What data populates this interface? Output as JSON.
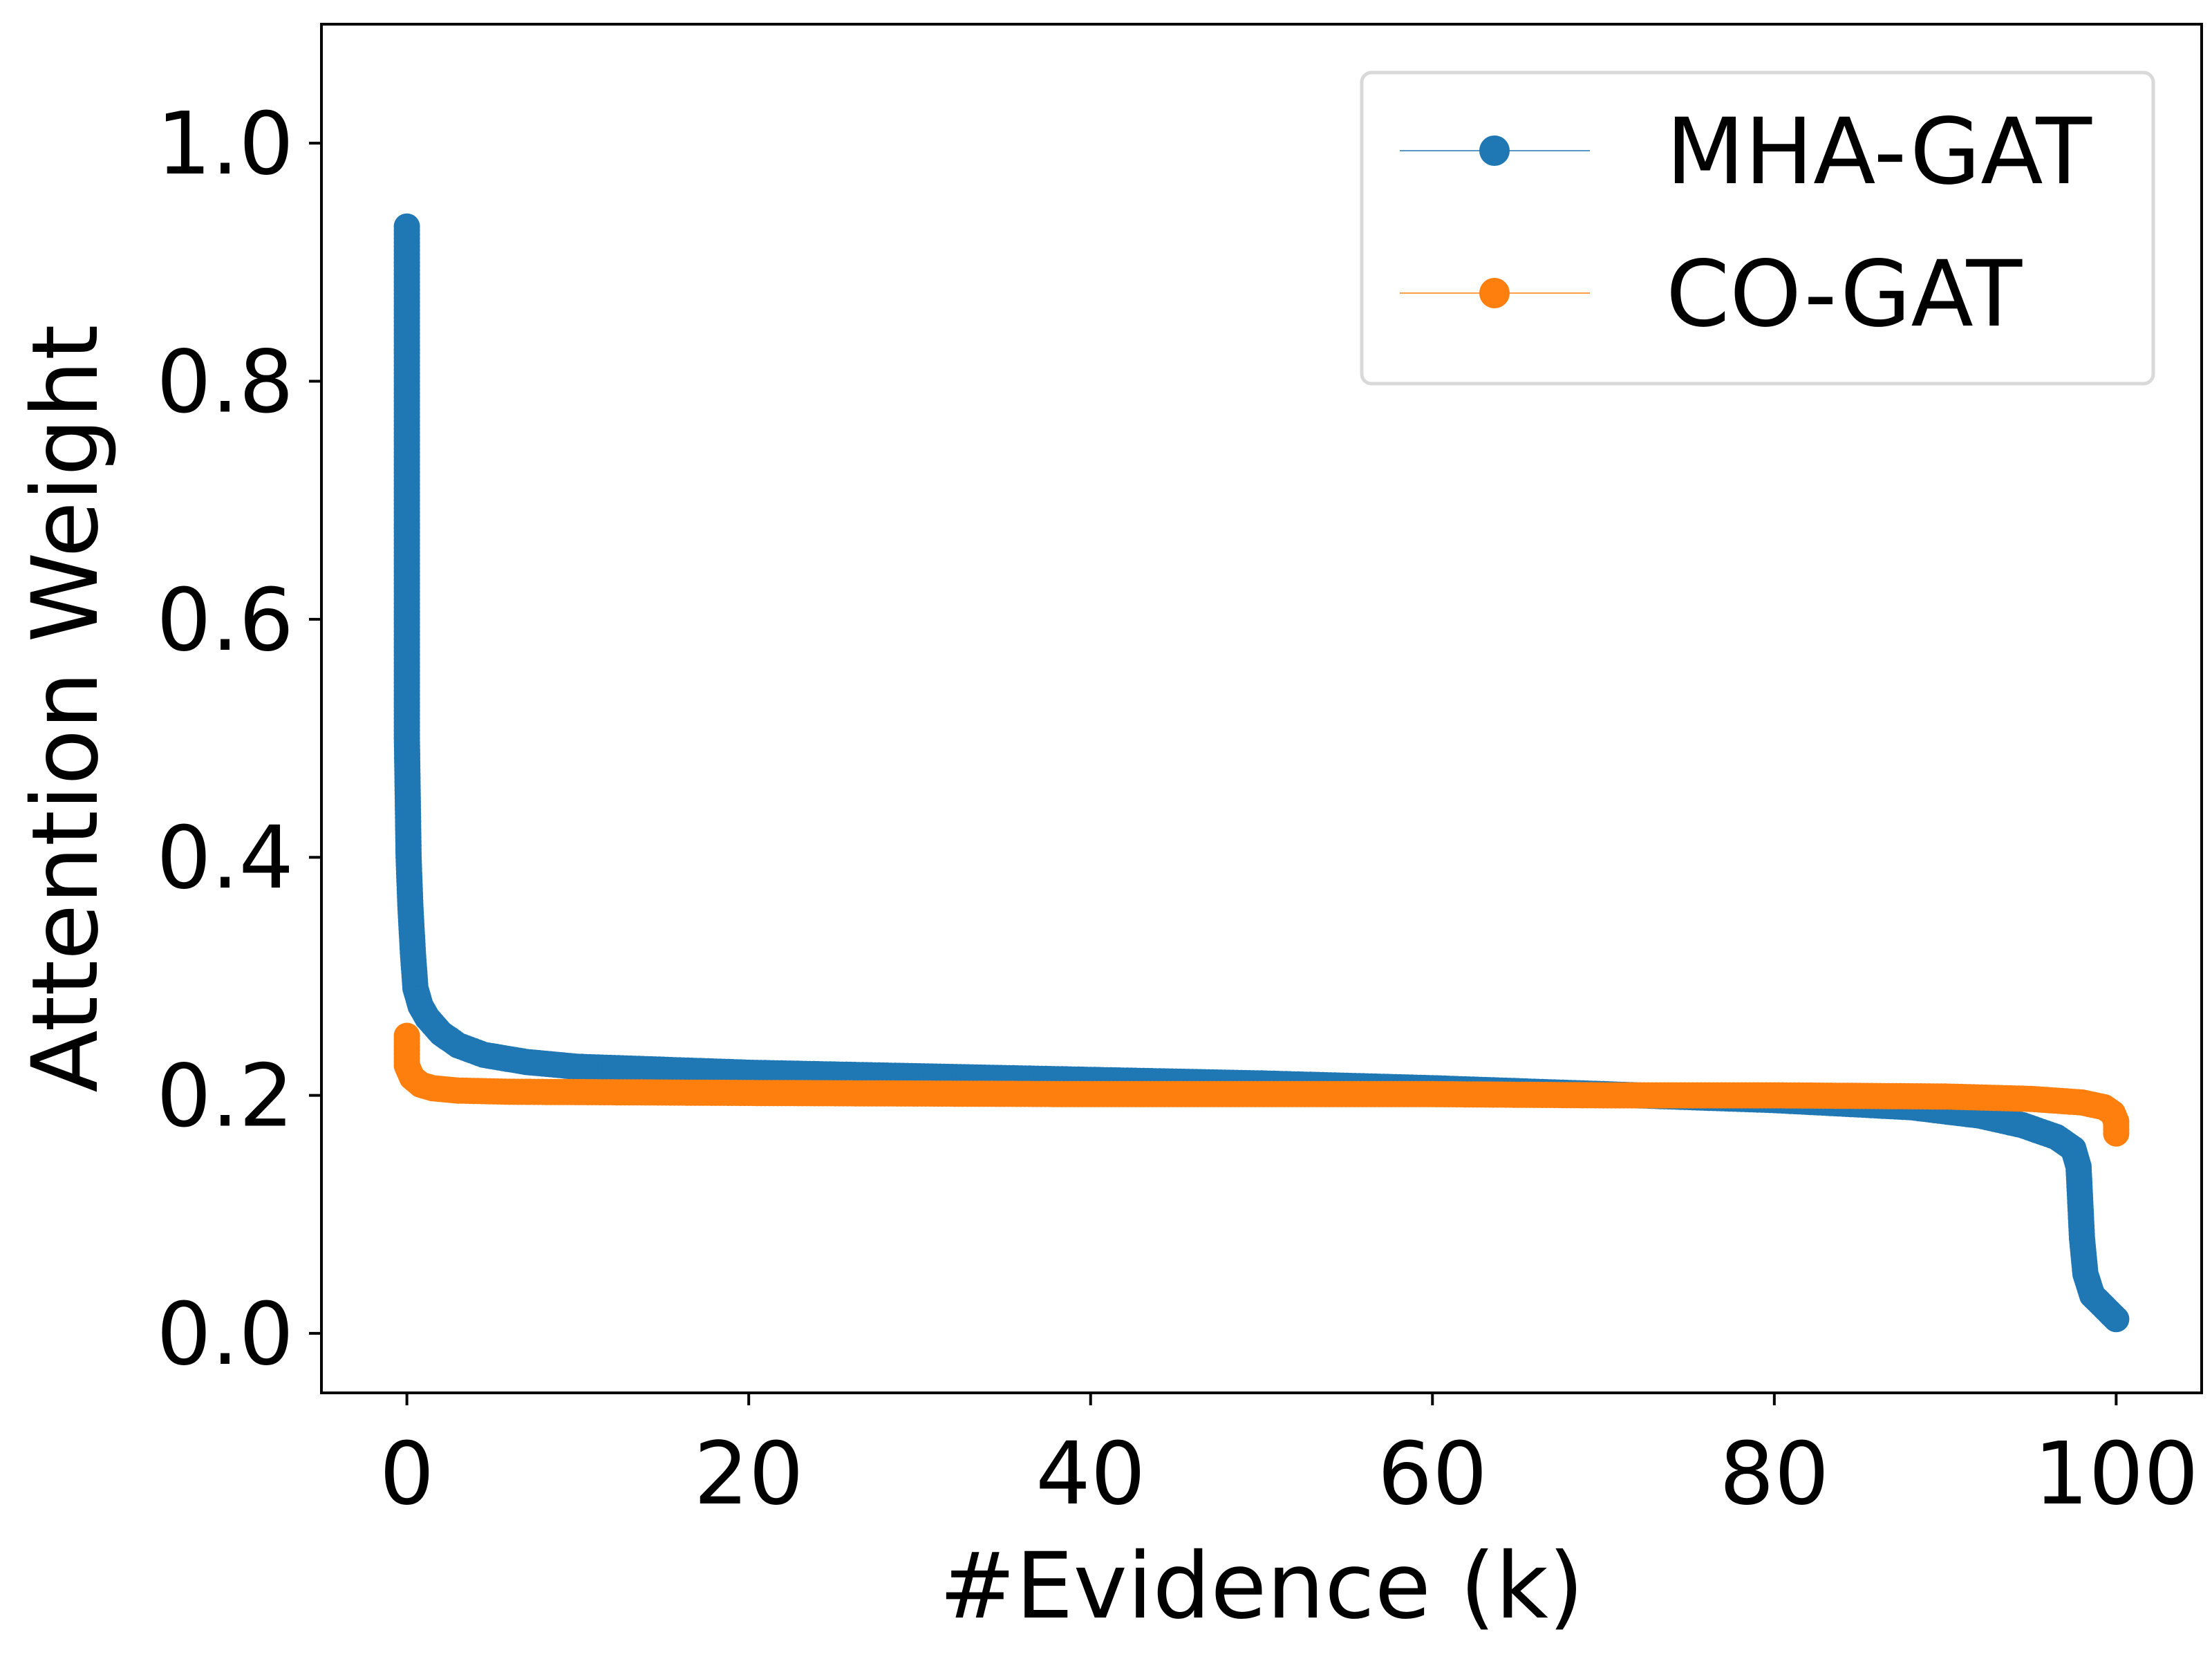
{
  "chart_data": {
    "type": "scatter",
    "title": "",
    "xlabel": "#Evidence (k)",
    "ylabel": "Attention Weight",
    "xlim": [
      -5,
      105
    ],
    "ylim": [
      -0.05,
      1.1
    ],
    "xticks": [
      0,
      20,
      40,
      60,
      80,
      100
    ],
    "yticks": [
      0.0,
      0.2,
      0.4,
      0.6,
      0.8,
      1.0
    ],
    "xtick_labels": [
      "0",
      "20",
      "40",
      "60",
      "80",
      "100"
    ],
    "ytick_labels": [
      "0.0",
      "0.2",
      "0.4",
      "0.6",
      "0.8",
      "1.0"
    ],
    "grid": false,
    "legend_position": "top-right",
    "series": [
      {
        "name": "MHA-GAT",
        "color": "#1f77b4",
        "points": [
          [
            0,
            0.93
          ],
          [
            0,
            0.89
          ],
          [
            0,
            0.85
          ],
          [
            0,
            0.8
          ],
          [
            0,
            0.75
          ],
          [
            0,
            0.7
          ],
          [
            0,
            0.65
          ],
          [
            0,
            0.6
          ],
          [
            0,
            0.55
          ],
          [
            0,
            0.5
          ],
          [
            0.05,
            0.45
          ],
          [
            0.1,
            0.4
          ],
          [
            0.2,
            0.36
          ],
          [
            0.35,
            0.32
          ],
          [
            0.5,
            0.29
          ],
          [
            0.8,
            0.275
          ],
          [
            1.2,
            0.265
          ],
          [
            2,
            0.252
          ],
          [
            3,
            0.242
          ],
          [
            4.5,
            0.234
          ],
          [
            7,
            0.228
          ],
          [
            10,
            0.224
          ],
          [
            20,
            0.219
          ],
          [
            30,
            0.216
          ],
          [
            40,
            0.213
          ],
          [
            50,
            0.21
          ],
          [
            60,
            0.206
          ],
          [
            70,
            0.201
          ],
          [
            80,
            0.196
          ],
          [
            88,
            0.19
          ],
          [
            92,
            0.183
          ],
          [
            94.5,
            0.175
          ],
          [
            96.5,
            0.165
          ],
          [
            97.5,
            0.155
          ],
          [
            97.8,
            0.14
          ],
          [
            97.9,
            0.11
          ],
          [
            98,
            0.08
          ],
          [
            98.2,
            0.05
          ],
          [
            98.6,
            0.032
          ],
          [
            99.3,
            0.022
          ],
          [
            100,
            0.012
          ]
        ]
      },
      {
        "name": "CO-GAT",
        "color": "#ff7f0e",
        "points": [
          [
            0,
            0.25
          ],
          [
            0,
            0.238
          ],
          [
            0,
            0.225
          ],
          [
            0.3,
            0.215
          ],
          [
            0.8,
            0.209
          ],
          [
            1.5,
            0.206
          ],
          [
            3,
            0.204
          ],
          [
            6,
            0.203
          ],
          [
            20,
            0.202
          ],
          [
            40,
            0.201
          ],
          [
            60,
            0.201
          ],
          [
            70,
            0.2
          ],
          [
            80,
            0.2
          ],
          [
            90,
            0.199
          ],
          [
            95,
            0.197
          ],
          [
            98,
            0.194
          ],
          [
            99.3,
            0.19
          ],
          [
            99.8,
            0.185
          ],
          [
            100,
            0.178
          ],
          [
            100,
            0.168
          ]
        ]
      }
    ]
  }
}
